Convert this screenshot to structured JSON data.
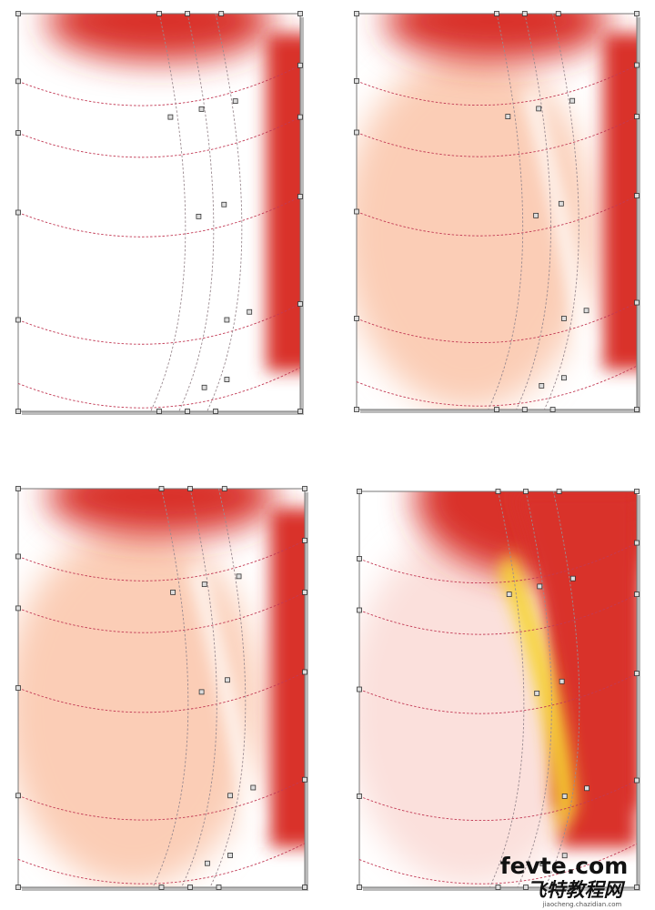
{
  "watermark": {
    "site": "fevte.com",
    "name": "飞特教程网",
    "url": "jiaocheng.chazidian.com"
  }
}
